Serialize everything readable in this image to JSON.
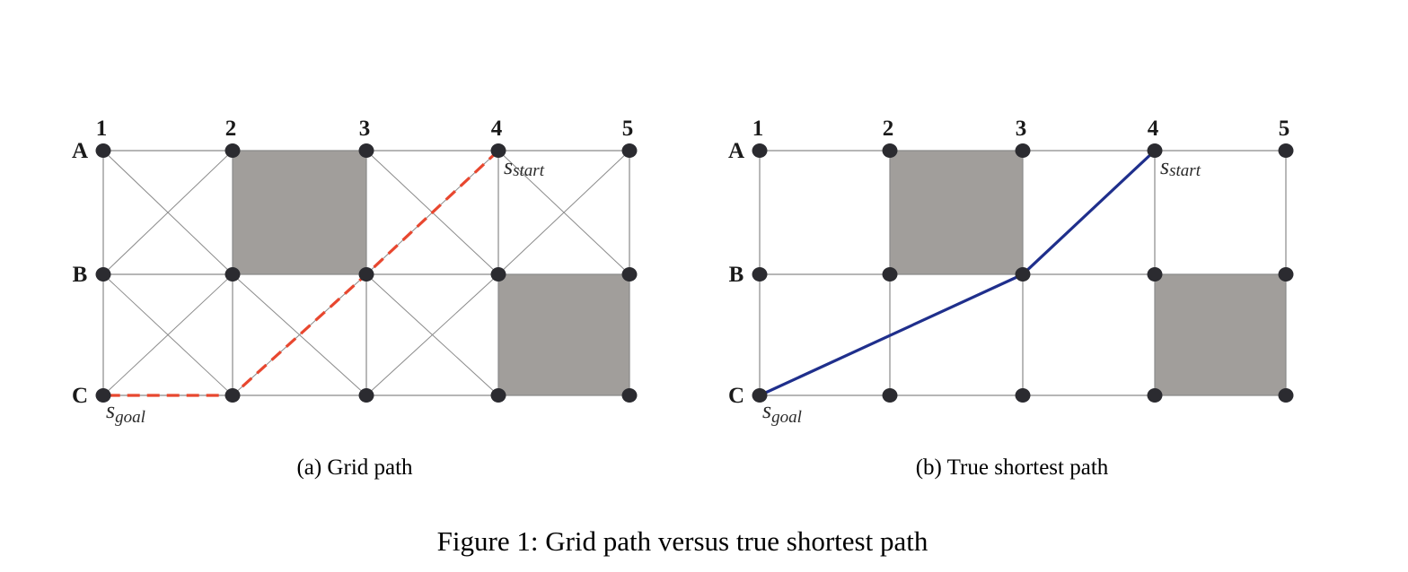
{
  "figure_caption": "Figure 1: Grid path versus true shortest path",
  "columns": [
    "1",
    "2",
    "3",
    "4",
    "5"
  ],
  "rows": [
    "A",
    "B",
    "C"
  ],
  "blocked_cells": [
    "A2-B3",
    "B4-C5"
  ],
  "start": {
    "node": "A4",
    "symbol": "s",
    "subscript": "start"
  },
  "goal": {
    "node": "C1",
    "symbol": "s",
    "subscript": "goal"
  },
  "colors": {
    "edge": "#8a8a8a",
    "node": "#2b2b30",
    "obstacle": "#a19e9b",
    "grid_path": "#e8472f",
    "true_path": "#1f2f8c"
  },
  "panels": [
    {
      "id": "a",
      "caption": "(a)  Grid path",
      "diagonals": true,
      "path_style": "dashed",
      "path": [
        "A4",
        "B3",
        "C2",
        "C1"
      ]
    },
    {
      "id": "b",
      "caption": "(b)  True shortest path",
      "diagonals": false,
      "path_style": "solid",
      "path": [
        "A4",
        "B3",
        "C1"
      ]
    }
  ]
}
